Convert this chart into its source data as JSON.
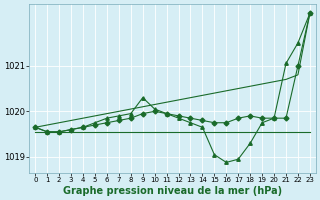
{
  "background_color": "#d6eef5",
  "grid_color": "#c8dde4",
  "line_color": "#1a6b2a",
  "x_hours": [
    0,
    1,
    2,
    3,
    4,
    5,
    6,
    7,
    8,
    9,
    10,
    11,
    12,
    13,
    14,
    15,
    16,
    17,
    18,
    19,
    20,
    21,
    22,
    23
  ],
  "series": {
    "straight": [
      1019.65,
      1019.7,
      1019.75,
      1019.8,
      1019.85,
      1019.9,
      1019.95,
      1020.0,
      1020.05,
      1020.1,
      1020.15,
      1020.2,
      1020.25,
      1020.3,
      1020.35,
      1020.4,
      1020.45,
      1020.5,
      1020.55,
      1020.6,
      1020.65,
      1020.7,
      1020.8,
      1022.15
    ],
    "flat": [
      1019.55,
      1019.55,
      1019.55,
      1019.55,
      1019.55,
      1019.55,
      1019.55,
      1019.55,
      1019.55,
      1019.55,
      1019.55,
      1019.55,
      1019.55,
      1019.55,
      1019.55,
      1019.55,
      1019.55,
      1019.55,
      1019.55,
      1019.55,
      1019.55,
      1019.55,
      1019.55,
      1019.55
    ],
    "wavy_tri": [
      1019.65,
      1019.55,
      1019.55,
      1019.6,
      1019.65,
      1019.75,
      1019.85,
      1019.9,
      1019.95,
      1020.3,
      1020.05,
      1019.95,
      1019.85,
      1019.75,
      1019.65,
      1019.05,
      1018.88,
      1018.95,
      1019.3,
      1019.75,
      1019.85,
      1021.05,
      1021.5,
      1022.15
    ],
    "wavy_dia": [
      1019.65,
      1019.55,
      1019.55,
      1019.6,
      1019.65,
      1019.7,
      1019.75,
      1019.8,
      1019.85,
      1019.95,
      1020.0,
      1019.95,
      1019.9,
      1019.85,
      1019.8,
      1019.75,
      1019.75,
      1019.85,
      1019.9,
      1019.85,
      1019.85,
      1019.85,
      1021.0,
      1022.15
    ]
  },
  "ylim": [
    1018.65,
    1022.35
  ],
  "yticks": [
    1019,
    1020,
    1021
  ],
  "xticks": [
    0,
    1,
    2,
    3,
    4,
    5,
    6,
    7,
    8,
    9,
    10,
    11,
    12,
    13,
    14,
    15,
    16,
    17,
    18,
    19,
    20,
    21,
    22,
    23
  ],
  "xlabel": "Graphe pression niveau de la mer (hPa)",
  "axis_fontsize": 6,
  "xlabel_fontsize": 7,
  "marker_tri": "^",
  "marker_dia": "D",
  "marker_size": 2.5
}
